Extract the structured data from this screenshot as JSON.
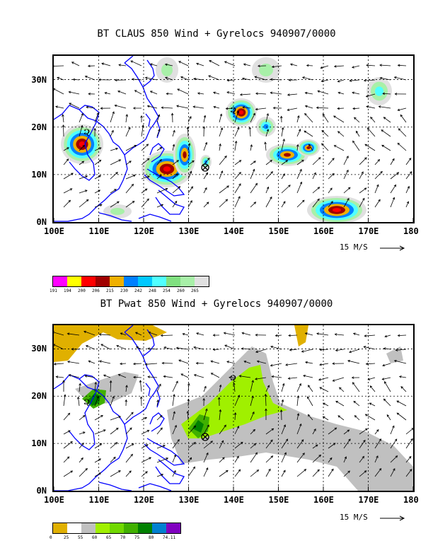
{
  "top": {
    "title": "BT CLAUS 850 Wind + Gyrelocs 940907/0000",
    "colorbar": {
      "colors": [
        "#ff00ff",
        "#ffff00",
        "#ff0000",
        "#a00000",
        "#f0b000",
        "#0080ff",
        "#00c8ff",
        "#50ffff",
        "#80e080",
        "#a8f0a8",
        "#e0e0e0"
      ],
      "labels": [
        "191",
        "194",
        "200",
        "206",
        "215",
        "230",
        "242",
        "248",
        "254",
        "260",
        "265"
      ]
    }
  },
  "bottom": {
    "title": "BT Pwat 850 Wind + Gyrelocs 940907/0000",
    "colorbar": {
      "colors": [
        "#e0b000",
        "#ffffff",
        "#c0c0c0",
        "#a0f000",
        "#70d800",
        "#40b000",
        "#008000",
        "#0080d0",
        "#8000c0"
      ],
      "labels": [
        "0",
        "25",
        "55",
        "60",
        "65",
        "70",
        "75",
        "80",
        "74.11"
      ]
    }
  },
  "axes": {
    "lon_labels": [
      "100E",
      "110E",
      "120E",
      "130E",
      "140E",
      "150E",
      "160E",
      "170E",
      "180"
    ],
    "lat_labels": [
      "30N",
      "20N",
      "10N",
      "0N"
    ]
  },
  "wind_scale": "15 M/S",
  "colors": {
    "coast": "#0000ff",
    "grid": "#000000",
    "frame": "#000000"
  }
}
